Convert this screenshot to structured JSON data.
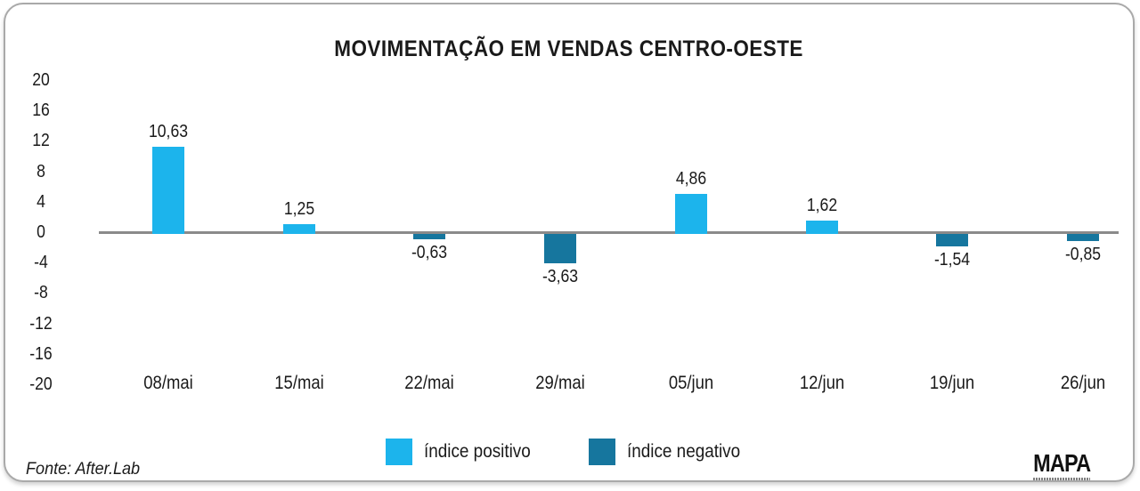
{
  "chart_data": {
    "type": "bar",
    "title": "MOVIMENTAÇÃO EM VENDAS CENTRO-OESTE",
    "categories": [
      "08/mai",
      "15/mai",
      "22/mai",
      "29/mai",
      "05/jun",
      "12/jun",
      "19/jun",
      "26/jun"
    ],
    "values": [
      10.63,
      1.25,
      -0.63,
      -3.63,
      4.86,
      1.62,
      -1.54,
      -0.85
    ],
    "value_labels": [
      "10,63",
      "1,25",
      "-0,63",
      "-3,63",
      "4,86",
      "1,62",
      "-1,54",
      "-0,85"
    ],
    "y_ticks": [
      "20",
      "16",
      "12",
      "8",
      "4",
      "0",
      "-4",
      "-8",
      "-12",
      "-16",
      "-20"
    ],
    "ylim": [
      -20,
      20
    ],
    "xlabel": "",
    "ylabel": "",
    "grid": false,
    "legend_position": "bottom",
    "legend": [
      {
        "label": "índice positivo",
        "key": "positive"
      },
      {
        "label": "índice negativo",
        "key": "negative"
      }
    ]
  },
  "footer": {
    "source": "Fonte: After.Lab",
    "brand": "MAPA"
  },
  "colors": {
    "positive": "#1cb4ec",
    "negative": "#16769e",
    "axis": "#8a8a8a",
    "text": "#1a1a1a",
    "card_border": "#a9a9a9",
    "background": "#ffffff"
  }
}
